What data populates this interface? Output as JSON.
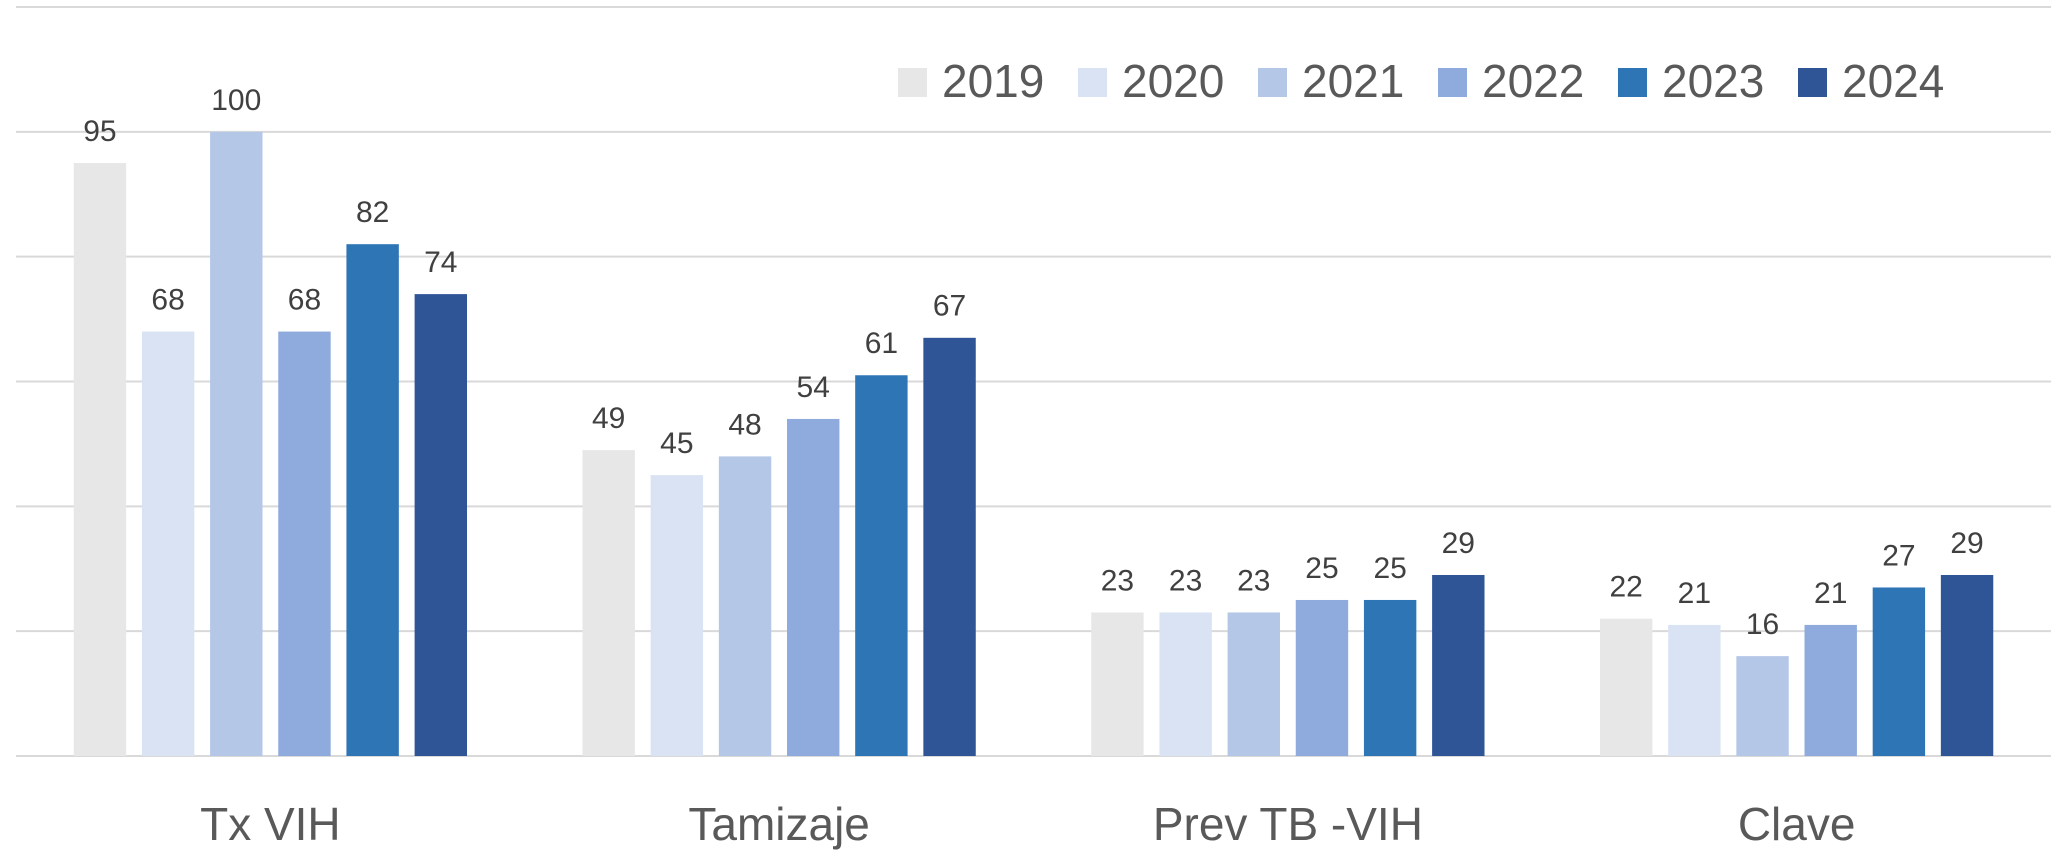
{
  "chart_data": {
    "type": "bar",
    "categories": [
      "Tx VIH",
      "Tamizaje",
      "Prev TB -VIH",
      "Clave"
    ],
    "series": [
      {
        "name": "2019",
        "color": "#e7e7e7",
        "values": [
          95,
          49,
          23,
          22
        ]
      },
      {
        "name": "2020",
        "color": "#dae3f3",
        "values": [
          68,
          45,
          23,
          21
        ]
      },
      {
        "name": "2021",
        "color": "#b4c7e7",
        "values": [
          100,
          48,
          23,
          16
        ]
      },
      {
        "name": "2022",
        "color": "#8faadc",
        "values": [
          68,
          54,
          25,
          21
        ]
      },
      {
        "name": "2023",
        "color": "#2e75b6",
        "values": [
          82,
          61,
          25,
          27
        ]
      },
      {
        "name": "2024",
        "color": "#2f5597",
        "values": [
          74,
          67,
          29,
          29
        ]
      }
    ],
    "ylim": [
      0,
      120
    ],
    "yticks": [
      0,
      20,
      40,
      60,
      80,
      100,
      120
    ],
    "grid": true,
    "legend": "top-right"
  }
}
